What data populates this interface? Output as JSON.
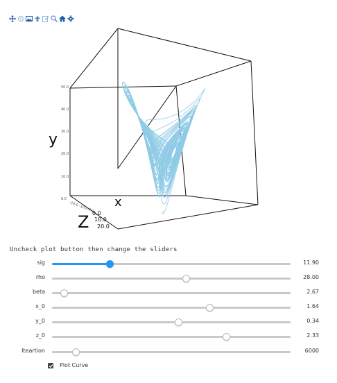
{
  "toolbar": {
    "icons": [
      "pan-icon",
      "rotate-icon",
      "download-icon",
      "upload-icon",
      "edit-icon",
      "zoom-icon",
      "home-icon",
      "settings-icon"
    ],
    "color": "#1f5fa8"
  },
  "plot": {
    "axis_labels": {
      "x": "x",
      "y": "y",
      "z": "Z"
    },
    "y_ticks": [
      "50.0",
      "40.0",
      "30.0",
      "20.0",
      "10.0",
      "0.0"
    ],
    "z_ticks": [
      "0.0",
      "10.0",
      "20.0"
    ],
    "x_tick_text": "-20.0 -10.0 0.0",
    "curve_color": "#8fcbe6"
  },
  "chart_data": {
    "type": "line",
    "xlabel": "x",
    "ylabel": "y",
    "zlabel": "Z",
    "y_ticks": [
      0,
      10,
      20,
      30,
      40,
      50
    ],
    "z_ticks": [
      0,
      10,
      20
    ],
    "system": "lorenz",
    "parameters": {
      "sig": 11.9,
      "rho": 28.0,
      "beta": 2.67,
      "x_0": 1.64,
      "y_0": 0.34,
      "z_0": 2.33,
      "iterations": 6000
    }
  },
  "controls": {
    "hint": "Uncheck plot button  then change the sliders",
    "sliders": [
      {
        "label": "sig",
        "value": "11.90",
        "position": 0.24,
        "active": true
      },
      {
        "label": "rho",
        "value": "28.00",
        "position": 0.56,
        "active": false
      },
      {
        "label": "beta",
        "value": "2.67",
        "position": 0.05,
        "active": false
      },
      {
        "label": "x_0",
        "value": "1.64",
        "position": 0.66,
        "active": false
      },
      {
        "label": "y_0",
        "value": "0.34",
        "position": 0.53,
        "active": false
      },
      {
        "label": "z_0",
        "value": "2.33",
        "position": 0.73,
        "active": false
      },
      {
        "label": "Iteartion",
        "value": "6000",
        "position": 0.1,
        "active": false
      }
    ],
    "checkbox": {
      "label": "Plot Curve",
      "checked": true
    }
  }
}
